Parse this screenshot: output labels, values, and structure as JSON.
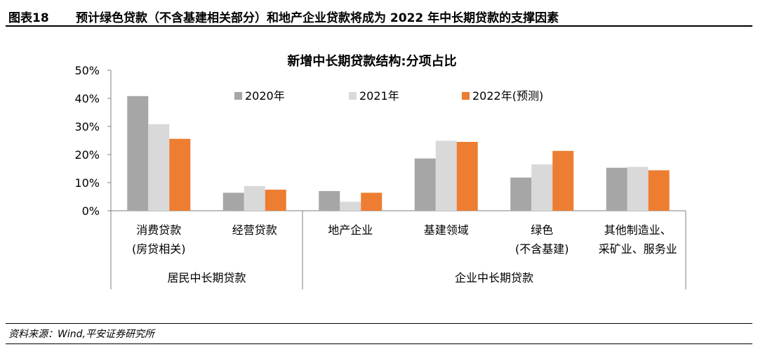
{
  "figure": {
    "label": "图表18",
    "title": "预计绿色贷款（不含基建相关部分）和地产企业贷款将成为 2022 年中长期贷款的支撑因素",
    "source": "资料来源：Wind,平安证券研究所"
  },
  "chart_data": {
    "type": "bar",
    "title": "新增中长期贷款结构:分项占比",
    "categories": [
      [
        "消费贷款",
        "(房贷相关)"
      ],
      [
        "经营贷款"
      ],
      [
        "地产企业"
      ],
      [
        "基建领域"
      ],
      [
        "绿色",
        "(不含基建)"
      ],
      [
        "其他制造业、",
        "采矿业、服务业"
      ]
    ],
    "groups": [
      {
        "label": "居民中长期贷款",
        "categories": [
          0,
          1
        ]
      },
      {
        "label": "企业中长期贷款",
        "categories": [
          2,
          3,
          4,
          5
        ]
      }
    ],
    "series": [
      {
        "name": "2020年",
        "color": "#a6a6a6",
        "values": [
          40.8,
          6.4,
          7.0,
          18.6,
          11.8,
          15.3
        ]
      },
      {
        "name": "2021年",
        "color": "#d9d9d9",
        "values": [
          30.8,
          8.8,
          3.2,
          24.9,
          16.5,
          15.6
        ]
      },
      {
        "name": "2022年(预测)",
        "color": "#ed7d31",
        "values": [
          25.6,
          7.5,
          6.4,
          24.5,
          21.3,
          14.4
        ]
      }
    ],
    "yticks": [
      "0%",
      "10%",
      "20%",
      "30%",
      "40%",
      "50%"
    ],
    "ylim": [
      0,
      50
    ],
    "legend_position": "top",
    "grid": false
  }
}
